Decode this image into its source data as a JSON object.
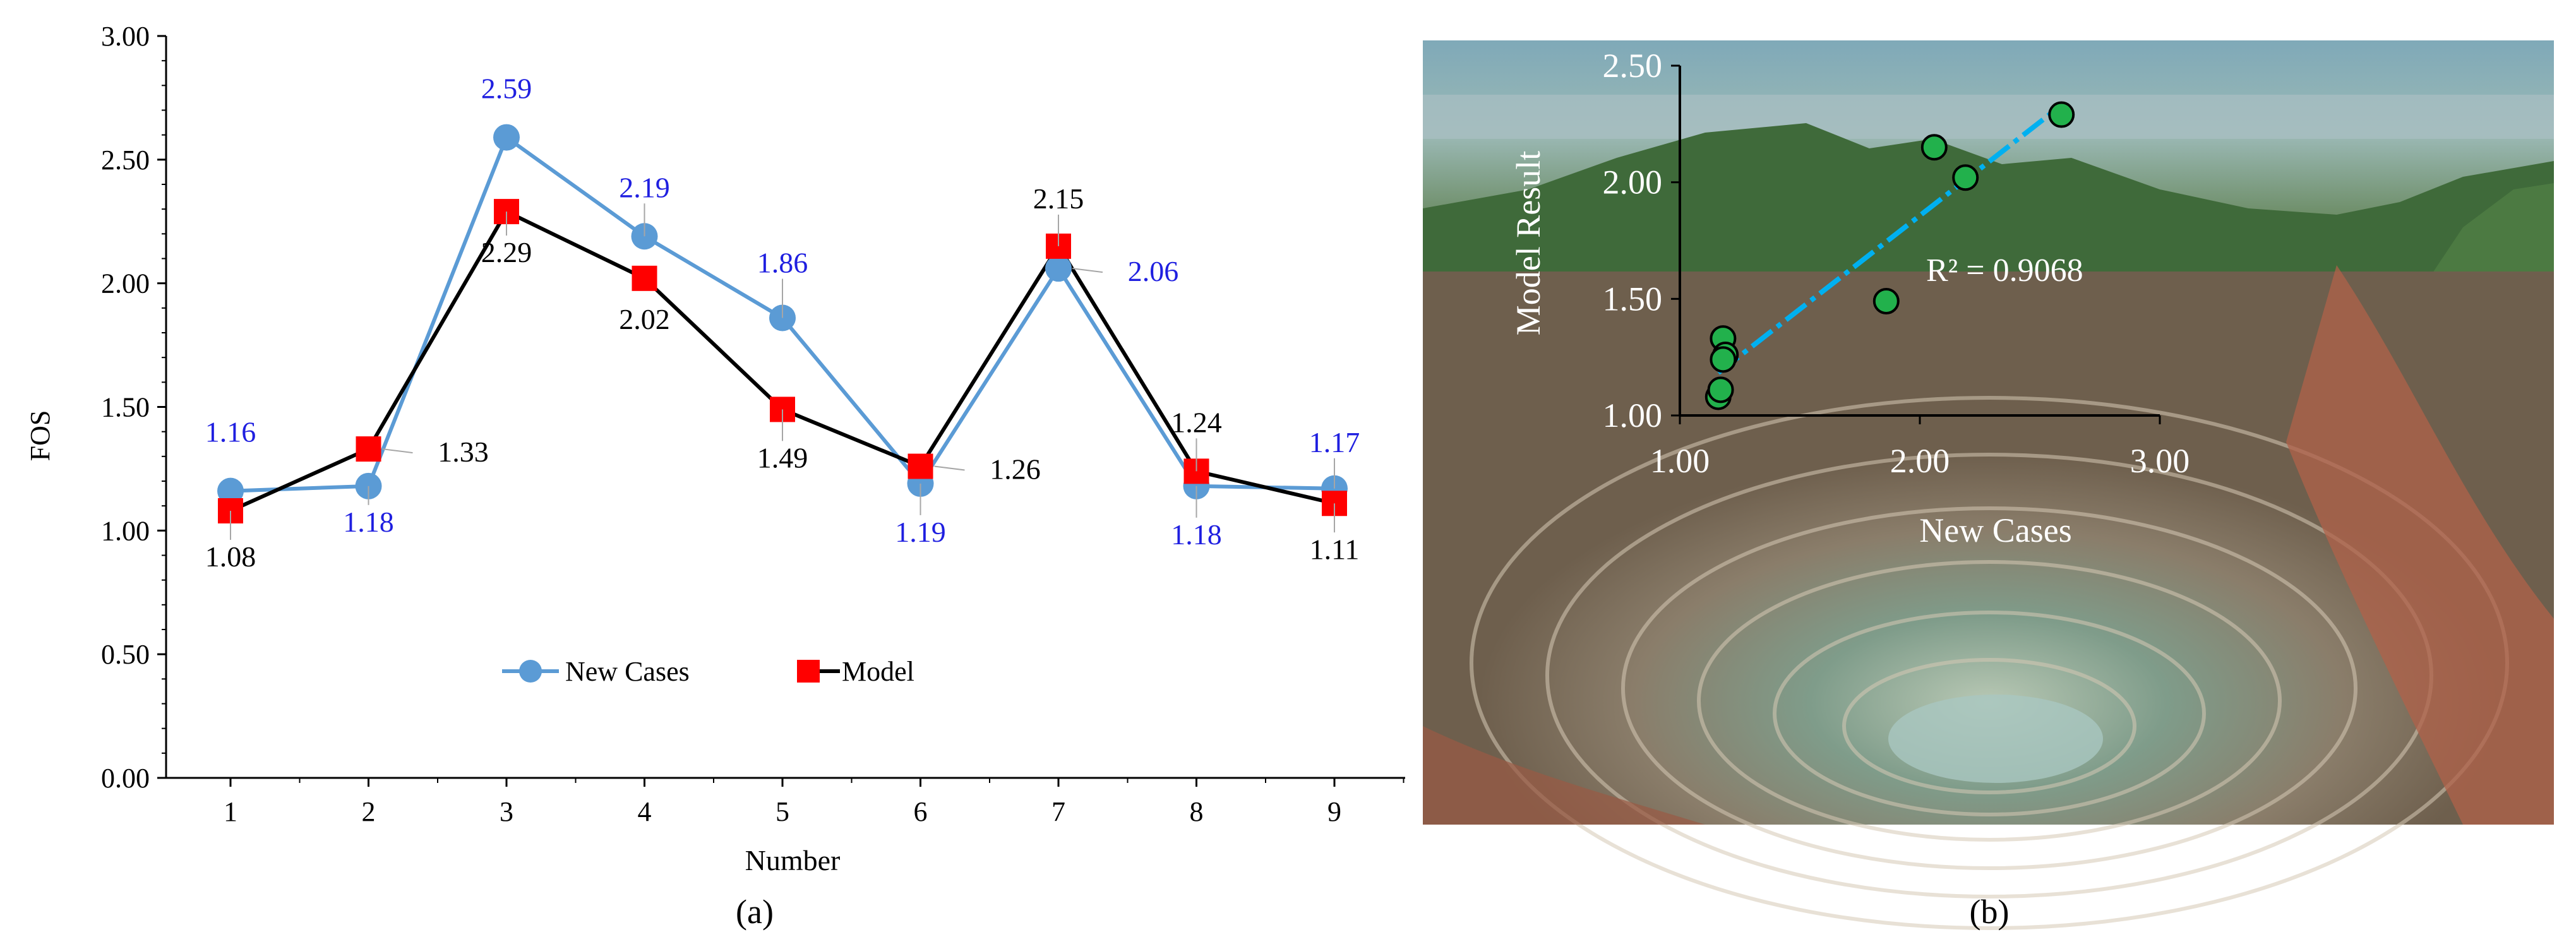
{
  "panel_labels": {
    "a": "(a)",
    "b": "(b)"
  },
  "colors": {
    "new_cases": "#5B9BD5",
    "new_cases_label": "#1F1FE0",
    "model_marker": "#FF0000",
    "model_line": "#000000",
    "scatter_fill": "#22B14C",
    "trendline": "#00B0F0"
  },
  "chart_data": [
    {
      "type": "line",
      "xlabel": "Number",
      "ylabel": "FOS",
      "x": [
        1,
        2,
        3,
        4,
        5,
        6,
        7,
        8,
        9
      ],
      "ylim": [
        0,
        3
      ],
      "yticks": [
        "0.00",
        "0.50",
        "1.00",
        "1.50",
        "2.00",
        "2.50",
        "3.00"
      ],
      "xticks": [
        "1",
        "2",
        "3",
        "4",
        "5",
        "6",
        "7",
        "8",
        "9"
      ],
      "legend_position": "bottom-center",
      "grid": false,
      "series": [
        {
          "name": "New Cases",
          "values": [
            1.16,
            1.18,
            2.59,
            2.19,
            1.86,
            1.19,
            2.06,
            1.18,
            1.17
          ],
          "labels": [
            "1.16",
            "1.18",
            "2.59",
            "2.19",
            "1.86",
            "1.19",
            "2.06",
            "1.18",
            "1.17"
          ],
          "marker": "circle"
        },
        {
          "name": "Model",
          "values": [
            1.08,
            1.33,
            2.29,
            2.02,
            1.49,
            1.26,
            2.15,
            1.24,
            1.11
          ],
          "labels": [
            "1.08",
            "1.33",
            "2.29",
            "2.02",
            "1.49",
            "1.26",
            "2.15",
            "1.24",
            "1.11"
          ],
          "marker": "square"
        }
      ]
    },
    {
      "type": "scatter",
      "xlabel": "New Cases",
      "ylabel": "Model Result",
      "xlim": [
        1,
        3
      ],
      "ylim": [
        1,
        2.5
      ],
      "xticks": [
        "1.00",
        "2.00",
        "3.00"
      ],
      "yticks": [
        "1.00",
        "1.50",
        "2.00",
        "2.50"
      ],
      "annotation": "R² = 0.9068",
      "trendline": "linear",
      "background": "open-pit mine aerial photograph",
      "points": [
        {
          "x": 1.16,
          "y": 1.08
        },
        {
          "x": 1.18,
          "y": 1.33
        },
        {
          "x": 2.59,
          "y": 2.29
        },
        {
          "x": 2.19,
          "y": 2.02
        },
        {
          "x": 1.86,
          "y": 1.49
        },
        {
          "x": 1.19,
          "y": 1.26
        },
        {
          "x": 2.06,
          "y": 2.15
        },
        {
          "x": 1.18,
          "y": 1.24
        },
        {
          "x": 1.17,
          "y": 1.11
        }
      ]
    }
  ]
}
